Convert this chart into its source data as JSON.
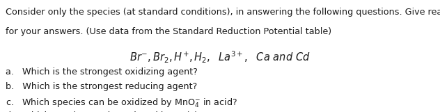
{
  "bg_color": "#ffffff",
  "text_color": "#1a1a1a",
  "intro_line1": "Consider only the species (at standard conditions), in answering the following questions. Give reason",
  "intro_line2": "for your answers. (Use data from the Standard Reduction Potential table)",
  "species_mathtext": "$\\mathbf{\\it{Br^{-},Br_{2},H^{+},H_{2},\\ \\ La^{3+},\\ \\ Ca\\ and\\ Cd}}$",
  "questions": [
    "a.   Which is the strongest oxidizing agent?",
    "b.   Which is the strongest reducing agent?",
    "c.   Which species can be oxidized by MnO$_4^{-}$ in acid?",
    "d.   Which species can be reduced by Zn(s)?"
  ],
  "font_size_intro": 9.2,
  "font_size_species": 10.5,
  "font_size_questions": 9.2,
  "fig_width": 6.32,
  "fig_height": 1.61,
  "dpi": 100
}
